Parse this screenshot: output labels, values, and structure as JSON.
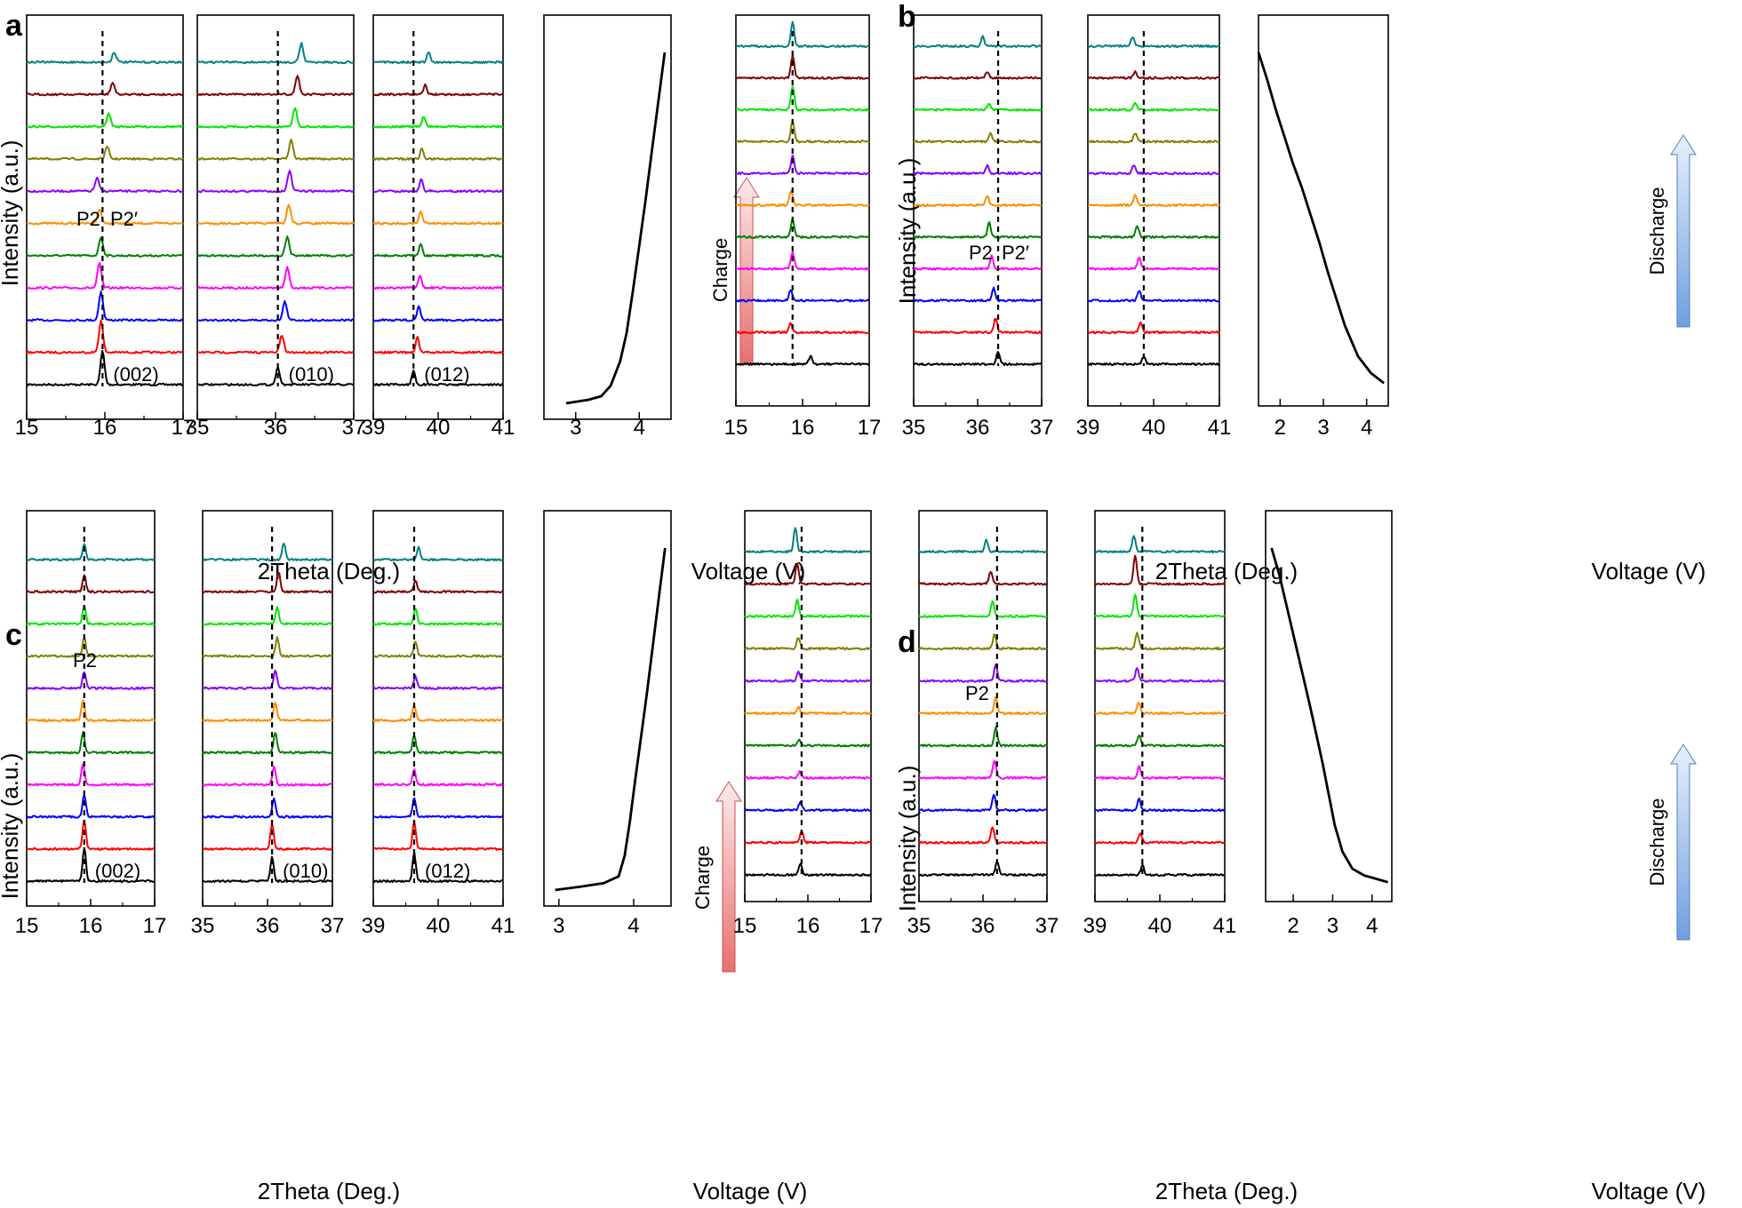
{
  "colors": {
    "series": [
      "#000000",
      "#ff0000",
      "#0000ff",
      "#ff00ff",
      "#008000",
      "#ff8c00",
      "#8b00ff",
      "#808000",
      "#00e600",
      "#800000",
      "#008080"
    ],
    "charge_arrow": "#e87070",
    "discharge_arrow": "#6fa0e0"
  },
  "chart_data": [
    {
      "panel": "a",
      "type": "line",
      "mode": "Charge",
      "ylabel": "Intensity (a.u.)",
      "xlabel_xrd": "2Theta (Deg.)",
      "xlabel_voltage": "Voltage (V)",
      "subplots": [
        {
          "xlim": [
            15,
            17
          ],
          "ticks": [
            "15",
            "16",
            "17"
          ],
          "peaks": [
            15.97,
            15.95,
            15.95,
            15.93,
            15.95,
            15.93,
            15.9,
            16.03,
            16.05,
            16.1,
            16.12
          ],
          "heights": [
            1,
            0.95,
            0.85,
            0.72,
            0.55,
            0.42,
            0.38,
            0.35,
            0.38,
            0.35,
            0.3
          ],
          "ref": 15.97,
          "label": "(002)"
        },
        {
          "xlim": [
            35,
            37
          ],
          "ticks": [
            "35",
            "36",
            "37"
          ],
          "peaks": [
            36.03,
            36.08,
            36.12,
            36.15,
            36.15,
            36.17,
            36.18,
            36.2,
            36.25,
            36.28,
            36.33
          ],
          "heights": [
            0.5,
            0.5,
            0.55,
            0.6,
            0.55,
            0.55,
            0.6,
            0.55,
            0.55,
            0.55,
            0.55
          ],
          "ref": 36.03,
          "label": "(010)"
        },
        {
          "xlim": [
            39,
            41
          ],
          "ticks": [
            "39",
            "40",
            "41"
          ],
          "peaks": [
            39.62,
            39.68,
            39.7,
            39.72,
            39.73,
            39.73,
            39.74,
            39.75,
            39.78,
            39.8,
            39.85
          ],
          "heights": [
            0.42,
            0.45,
            0.4,
            0.35,
            0.35,
            0.35,
            0.35,
            0.3,
            0.3,
            0.3,
            0.3
          ],
          "ref": 39.62,
          "label": "(012)"
        }
      ],
      "voltage": {
        "xlim": [
          2.5,
          4.5
        ],
        "ticks": [
          "3",
          "4"
        ],
        "x": [
          2.85,
          3.2,
          3.4,
          3.55,
          3.7,
          3.8,
          3.9,
          4.0,
          4.1,
          4.2,
          4.3,
          4.4
        ],
        "y": [
          0.0,
          0.01,
          0.02,
          0.05,
          0.12,
          0.2,
          0.32,
          0.45,
          0.58,
          0.72,
          0.86,
          1.0
        ]
      },
      "annotations": [
        "P2",
        "P2′"
      ]
    },
    {
      "panel": "b",
      "type": "line",
      "mode": "Discharge",
      "ylabel": "Intensity (a.u.)",
      "xlabel_xrd": "2Theta (Deg.)",
      "xlabel_voltage": "Voltage (V)",
      "subplots": [
        {
          "xlim": [
            15,
            17
          ],
          "ticks": [
            "15",
            "16",
            "17"
          ],
          "peaks": [
            16.12,
            15.82,
            15.82,
            15.85,
            15.85,
            15.83,
            15.85,
            15.85,
            15.85,
            15.85,
            15.85
          ],
          "heights": [
            0.25,
            0.3,
            0.35,
            0.5,
            0.55,
            0.45,
            0.55,
            0.65,
            0.75,
            0.7,
            0.75
          ],
          "ref": 15.85,
          "label": ""
        },
        {
          "xlim": [
            35,
            37
          ],
          "ticks": [
            "35",
            "36",
            "37"
          ],
          "peaks": [
            36.32,
            36.28,
            36.25,
            36.22,
            36.18,
            36.15,
            36.15,
            36.2,
            36.18,
            36.15,
            36.08
          ],
          "heights": [
            0.4,
            0.45,
            0.4,
            0.4,
            0.45,
            0.3,
            0.25,
            0.25,
            0.2,
            0.2,
            0.3
          ],
          "ref": 36.32,
          "label": ""
        },
        {
          "xlim": [
            39,
            41
          ],
          "ticks": [
            "39",
            "40",
            "41"
          ],
          "peaks": [
            39.85,
            39.8,
            39.78,
            39.78,
            39.75,
            39.72,
            39.7,
            39.72,
            39.72,
            39.72,
            39.68
          ],
          "heights": [
            0.25,
            0.3,
            0.3,
            0.35,
            0.35,
            0.3,
            0.25,
            0.25,
            0.2,
            0.2,
            0.3
          ],
          "ref": 39.85,
          "label": ""
        }
      ],
      "voltage": {
        "xlim": [
          1.5,
          4.5
        ],
        "ticks": [
          "2",
          "3",
          "4"
        ],
        "x": [
          1.5,
          1.7,
          1.9,
          2.1,
          2.3,
          2.5,
          2.7,
          2.9,
          3.1,
          3.3,
          3.5,
          3.8,
          4.1,
          4.4
        ],
        "y": [
          1.0,
          0.92,
          0.83,
          0.75,
          0.67,
          0.6,
          0.52,
          0.44,
          0.35,
          0.27,
          0.19,
          0.1,
          0.05,
          0.02
        ]
      },
      "annotations": [
        "P2",
        "P2′"
      ]
    },
    {
      "panel": "c",
      "type": "line",
      "mode": "Charge",
      "ylabel": "Intensity (a.u.)",
      "xlabel_xrd": "2Theta (Deg.)",
      "xlabel_voltage": "Voltage (V)",
      "subplots": [
        {
          "xlim": [
            15,
            17
          ],
          "ticks": [
            "15",
            "16",
            "17"
          ],
          "peaks": [
            15.9,
            15.9,
            15.9,
            15.88,
            15.88,
            15.88,
            15.9,
            15.9,
            15.9,
            15.9,
            15.9
          ],
          "heights": [
            1,
            0.85,
            0.65,
            0.6,
            0.6,
            0.6,
            0.5,
            0.55,
            0.55,
            0.5,
            0.45
          ],
          "ref": 15.9,
          "label": "(002)"
        },
        {
          "xlim": [
            35,
            37
          ],
          "ticks": [
            "35",
            "36",
            "37"
          ],
          "peaks": [
            36.07,
            36.07,
            36.1,
            36.1,
            36.12,
            36.12,
            36.12,
            36.15,
            36.15,
            36.17,
            36.25
          ],
          "heights": [
            0.7,
            0.75,
            0.55,
            0.55,
            0.6,
            0.55,
            0.55,
            0.55,
            0.5,
            0.6,
            0.5
          ],
          "ref": 36.07,
          "label": "(010)"
        },
        {
          "xlim": [
            39,
            41
          ],
          "ticks": [
            "39",
            "40",
            "41"
          ],
          "peaks": [
            39.63,
            39.63,
            39.63,
            39.63,
            39.63,
            39.63,
            39.65,
            39.65,
            39.65,
            39.65,
            39.7
          ],
          "heights": [
            0.85,
            0.8,
            0.55,
            0.45,
            0.5,
            0.45,
            0.35,
            0.45,
            0.45,
            0.35,
            0.35
          ],
          "ref": 39.63,
          "label": "(012)"
        }
      ],
      "voltage": {
        "xlim": [
          2.8,
          4.5
        ],
        "ticks": [
          "3",
          "4"
        ],
        "x": [
          2.95,
          3.3,
          3.6,
          3.8,
          3.88,
          3.95,
          4.02,
          4.1,
          4.18,
          4.26,
          4.34,
          4.42
        ],
        "y": [
          0.0,
          0.01,
          0.02,
          0.04,
          0.1,
          0.2,
          0.32,
          0.45,
          0.58,
          0.72,
          0.86,
          1.0
        ]
      },
      "annotations": [
        "P2"
      ]
    },
    {
      "panel": "d",
      "type": "line",
      "mode": "Discharge",
      "ylabel": "Intensity (a.u.)",
      "xlabel_xrd": "2Theta (Deg.)",
      "xlabel_voltage": "Voltage (V)",
      "subplots": [
        {
          "xlim": [
            15,
            17
          ],
          "ticks": [
            "15",
            "16",
            "17"
          ],
          "peaks": [
            15.88,
            15.9,
            15.88,
            15.87,
            15.86,
            15.85,
            15.85,
            15.85,
            15.83,
            15.83,
            15.8
          ],
          "heights": [
            0.35,
            0.35,
            0.25,
            0.2,
            0.2,
            0.2,
            0.3,
            0.35,
            0.5,
            0.65,
            0.75
          ],
          "ref": 15.9,
          "label": ""
        },
        {
          "xlim": [
            35,
            37
          ],
          "ticks": [
            "35",
            "36",
            "37"
          ],
          "peaks": [
            36.22,
            36.15,
            36.17,
            36.18,
            36.2,
            36.2,
            36.2,
            36.18,
            36.15,
            36.12,
            36.05
          ],
          "heights": [
            0.45,
            0.5,
            0.5,
            0.55,
            0.55,
            0.5,
            0.5,
            0.45,
            0.45,
            0.4,
            0.35
          ],
          "ref": 36.22,
          "label": ""
        },
        {
          "xlim": [
            39,
            41
          ],
          "ticks": [
            "39",
            "40",
            "41"
          ],
          "peaks": [
            39.73,
            39.7,
            39.68,
            39.68,
            39.68,
            39.67,
            39.65,
            39.65,
            39.62,
            39.62,
            39.6
          ],
          "heights": [
            0.3,
            0.3,
            0.35,
            0.35,
            0.35,
            0.35,
            0.4,
            0.5,
            0.7,
            0.9,
            0.5
          ],
          "ref": 39.73,
          "label": ""
        }
      ],
      "voltage": {
        "xlim": [
          1.3,
          4.5
        ],
        "ticks": [
          "2",
          "3",
          "4"
        ],
        "x": [
          1.45,
          1.65,
          1.85,
          2.05,
          2.25,
          2.45,
          2.6,
          2.75,
          2.9,
          3.05,
          3.25,
          3.5,
          3.8,
          4.1,
          4.4
        ],
        "y": [
          1.0,
          0.92,
          0.82,
          0.72,
          0.62,
          0.52,
          0.44,
          0.36,
          0.27,
          0.18,
          0.1,
          0.05,
          0.03,
          0.02,
          0.01
        ]
      },
      "annotations": [
        "P2"
      ]
    }
  ]
}
